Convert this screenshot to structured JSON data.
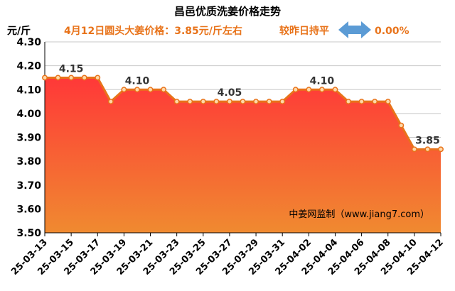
{
  "header": {
    "title": "昌邑优质洗姜价格走势",
    "unit": "元/斤",
    "price_note": "4月12日圆头大姜价格：3.85元/斤左右",
    "compare_text": "较昨日持平",
    "compare_icon": "double-arrow-icon",
    "change_pct": "0.00%"
  },
  "watermark": "中姜网监制（www.jiang7.com）",
  "colors": {
    "line": "#E8731A",
    "area_top": "#FF3838",
    "area_bottom": "#F08A30",
    "marker_fill": "#FFD8A8",
    "arrow": "#5B9BD5",
    "grid": "#C8C8C8"
  },
  "chart_data": {
    "type": "area",
    "title": "昌邑优质洗姜价格走势",
    "ylabel": "元/斤",
    "ylim": [
      3.5,
      4.3
    ],
    "yticks": [
      "3.50",
      "3.60",
      "3.70",
      "3.80",
      "3.90",
      "4.00",
      "4.10",
      "4.20",
      "4.30"
    ],
    "grid": true,
    "x": [
      "25-03-13",
      "25-03-14",
      "25-03-15",
      "25-03-16",
      "25-03-17",
      "25-03-18",
      "25-03-19",
      "25-03-20",
      "25-03-21",
      "25-03-22",
      "25-03-23",
      "25-03-24",
      "25-03-25",
      "25-03-26",
      "25-03-27",
      "25-03-28",
      "25-03-29",
      "25-03-30",
      "25-03-31",
      "25-04-01",
      "25-04-02",
      "25-04-03",
      "25-04-04",
      "25-04-05",
      "25-04-06",
      "25-04-07",
      "25-04-08",
      "25-04-09",
      "25-04-10",
      "25-04-11",
      "25-04-12"
    ],
    "xtick_labels": [
      "25-03-13",
      "25-03-15",
      "25-03-17",
      "25-03-19",
      "25-03-21",
      "25-03-23",
      "25-03-25",
      "25-03-27",
      "25-03-29",
      "25-03-31",
      "25-04-02",
      "25-04-04",
      "25-04-06",
      "25-04-08",
      "25-04-10",
      "25-04-12"
    ],
    "values": [
      4.15,
      4.15,
      4.15,
      4.15,
      4.15,
      4.05,
      4.1,
      4.1,
      4.1,
      4.1,
      4.05,
      4.05,
      4.05,
      4.05,
      4.05,
      4.05,
      4.05,
      4.05,
      4.05,
      4.1,
      4.1,
      4.1,
      4.1,
      4.05,
      4.05,
      4.05,
      4.05,
      3.95,
      3.85,
      3.85,
      3.85
    ],
    "data_labels": [
      {
        "index": 2,
        "text": "4.15"
      },
      {
        "index": 7,
        "text": "4.10"
      },
      {
        "index": 14,
        "text": "4.05"
      },
      {
        "index": 21,
        "text": "4.10"
      },
      {
        "index": 29,
        "text": "3.85"
      }
    ]
  }
}
